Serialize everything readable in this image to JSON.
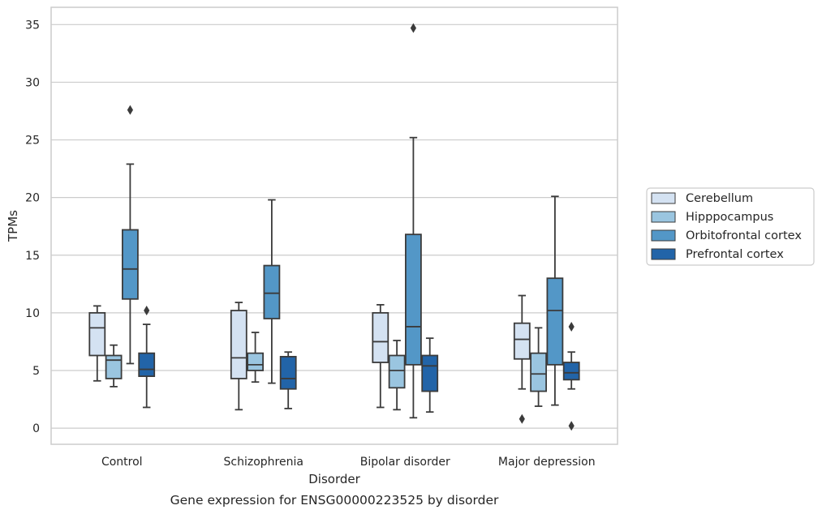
{
  "chart_data": {
    "type": "box",
    "title": "",
    "caption": "Gene expression for ENSG00000223525 by disorder",
    "xlabel": "Disorder",
    "ylabel": "TPMs",
    "ylim": [
      -1.4,
      36.5
    ],
    "yticks": [
      0,
      5,
      10,
      15,
      20,
      25,
      30,
      35
    ],
    "grid": "horizontal",
    "legend_position": "right",
    "categories": [
      "Control",
      "Schizophrenia",
      "Bipolar disorder",
      "Major depression"
    ],
    "series": [
      {
        "name": "Cerebellum",
        "color": "#d4e2f2",
        "boxes": [
          {
            "whisker_low": 4.1,
            "q1": 6.3,
            "median": 8.7,
            "q3": 10.0,
            "whisker_high": 10.6,
            "outliers": []
          },
          {
            "whisker_low": 1.6,
            "q1": 4.3,
            "median": 6.1,
            "q3": 10.2,
            "whisker_high": 10.9,
            "outliers": []
          },
          {
            "whisker_low": 1.8,
            "q1": 5.7,
            "median": 7.5,
            "q3": 10.0,
            "whisker_high": 10.7,
            "outliers": []
          },
          {
            "whisker_low": 3.4,
            "q1": 6.0,
            "median": 7.7,
            "q3": 9.1,
            "whisker_high": 11.5,
            "outliers": [
              0.8
            ]
          }
        ]
      },
      {
        "name": "Hipppocampus",
        "color": "#9ac5e0",
        "boxes": [
          {
            "whisker_low": 3.6,
            "q1": 4.3,
            "median": 5.9,
            "q3": 6.3,
            "whisker_high": 7.2,
            "outliers": []
          },
          {
            "whisker_low": 4.0,
            "q1": 5.0,
            "median": 5.5,
            "q3": 6.5,
            "whisker_high": 8.3,
            "outliers": []
          },
          {
            "whisker_low": 1.6,
            "q1": 3.5,
            "median": 5.0,
            "q3": 6.3,
            "whisker_high": 7.6,
            "outliers": []
          },
          {
            "whisker_low": 1.9,
            "q1": 3.2,
            "median": 4.7,
            "q3": 6.5,
            "whisker_high": 8.7,
            "outliers": []
          }
        ]
      },
      {
        "name": "Orbitofrontal cortex",
        "color": "#5397c7",
        "boxes": [
          {
            "whisker_low": 5.6,
            "q1": 11.2,
            "median": 13.8,
            "q3": 17.2,
            "whisker_high": 22.9,
            "outliers": [
              27.6
            ]
          },
          {
            "whisker_low": 3.9,
            "q1": 9.5,
            "median": 11.7,
            "q3": 14.1,
            "whisker_high": 19.8,
            "outliers": []
          },
          {
            "whisker_low": 0.9,
            "q1": 5.5,
            "median": 8.8,
            "q3": 16.8,
            "whisker_high": 25.2,
            "outliers": [
              34.7
            ]
          },
          {
            "whisker_low": 2.0,
            "q1": 5.5,
            "median": 10.2,
            "q3": 13.0,
            "whisker_high": 20.1,
            "outliers": []
          }
        ]
      },
      {
        "name": "Prefrontal cortex",
        "color": "#2264a8",
        "boxes": [
          {
            "whisker_low": 1.8,
            "q1": 4.5,
            "median": 5.1,
            "q3": 6.5,
            "whisker_high": 9.0,
            "outliers": [
              10.2
            ]
          },
          {
            "whisker_low": 1.7,
            "q1": 3.4,
            "median": 4.3,
            "q3": 6.2,
            "whisker_high": 6.6,
            "outliers": []
          },
          {
            "whisker_low": 1.4,
            "q1": 3.2,
            "median": 5.4,
            "q3": 6.3,
            "whisker_high": 7.8,
            "outliers": []
          },
          {
            "whisker_low": 3.4,
            "q1": 4.2,
            "median": 4.8,
            "q3": 5.7,
            "whisker_high": 6.6,
            "outliers": [
              8.8,
              0.2
            ]
          }
        ]
      }
    ]
  }
}
